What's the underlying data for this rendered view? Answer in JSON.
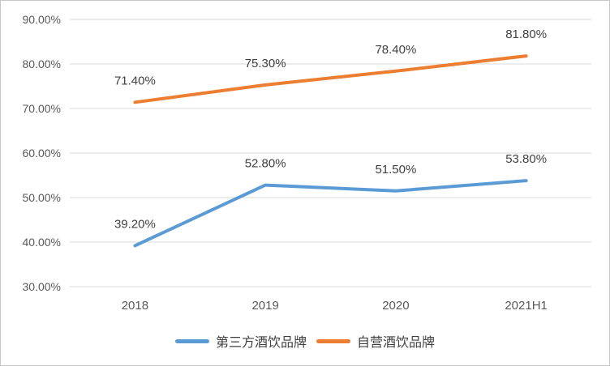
{
  "chart": {
    "background": "#FFFFFF",
    "border_color": "#C6C6C6",
    "gridline_color": "#D9D9D9",
    "axis_label_color": "#595959",
    "data_label_color": "#404040",
    "legend_text_color": "#404040"
  },
  "chart_data": {
    "type": "line",
    "title": "",
    "xlabel": "",
    "ylabel": "",
    "categories": [
      "2018",
      "2019",
      "2020",
      "2021H1"
    ],
    "series": [
      {
        "name": "第三方酒饮品牌",
        "color": "#5B9BD5",
        "values": [
          39.2,
          52.8,
          51.5,
          53.8
        ],
        "data_labels": [
          "39.20%",
          "52.80%",
          "51.50%",
          "53.80%"
        ]
      },
      {
        "name": "自营酒饮品牌",
        "color": "#ED7D31",
        "values": [
          71.4,
          75.3,
          78.4,
          81.8
        ],
        "data_labels": [
          "71.40%",
          "75.30%",
          "78.40%",
          "81.80%"
        ]
      }
    ],
    "y_axis": {
      "min": 30,
      "max": 90,
      "step": 10,
      "tick_labels": [
        "30.00%",
        "40.00%",
        "50.00%",
        "60.00%",
        "70.00%",
        "80.00%",
        "90.00%"
      ]
    },
    "grid": true,
    "legend_position": "bottom"
  }
}
